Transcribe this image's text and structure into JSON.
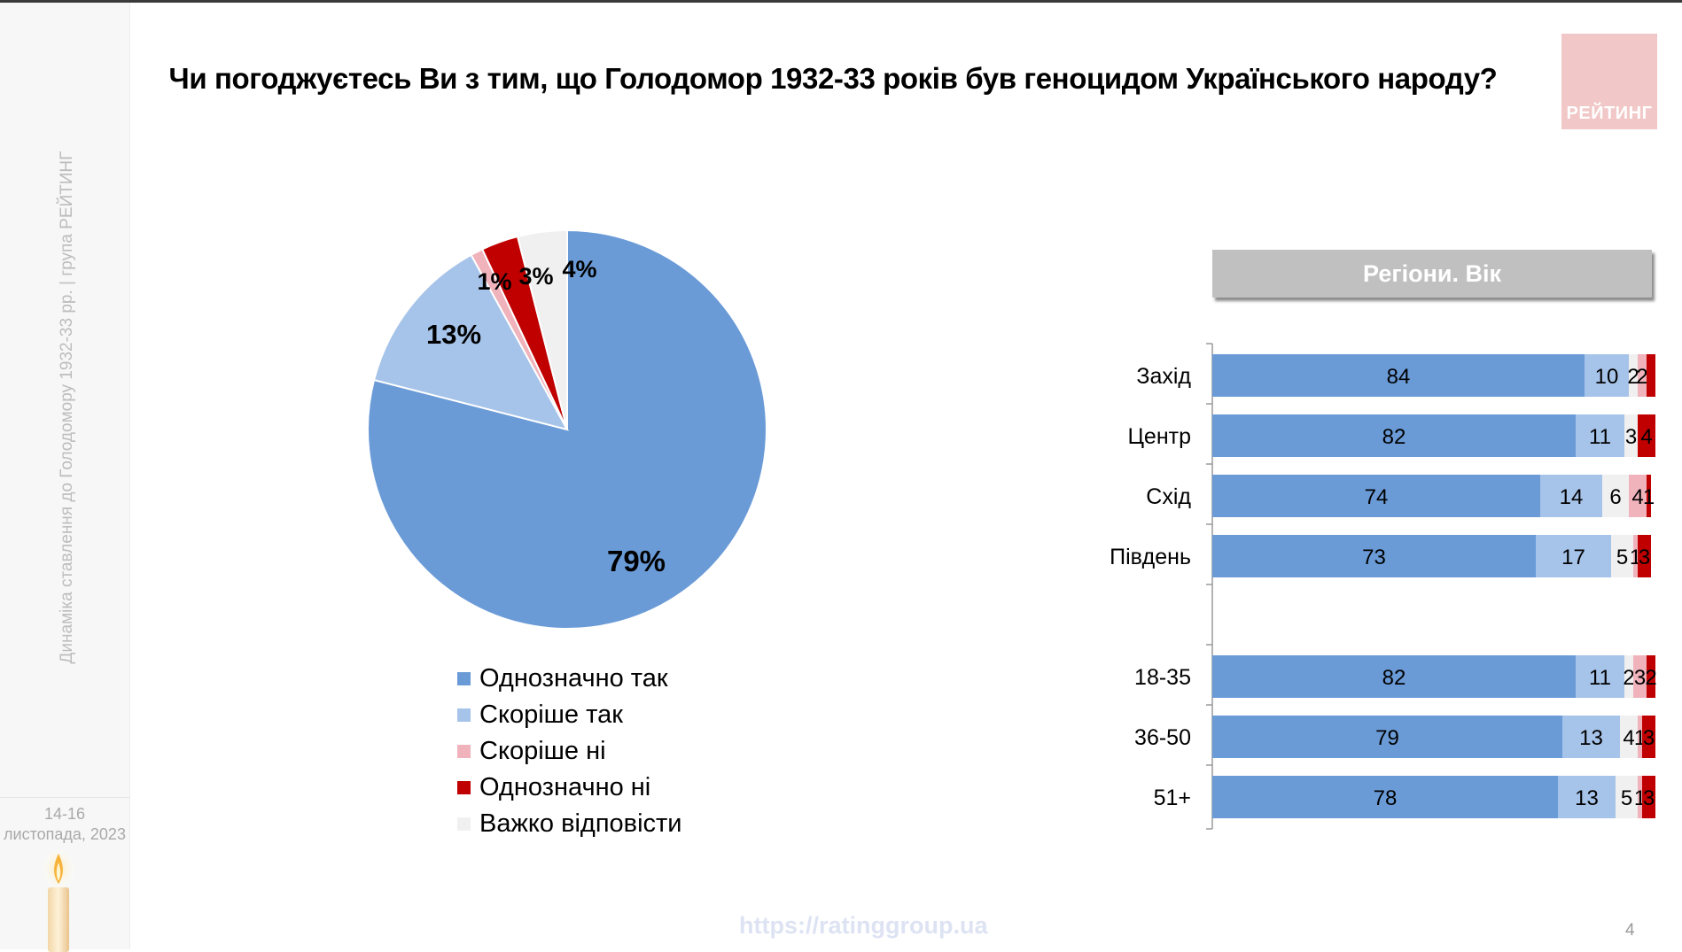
{
  "page": {
    "title": "Чи погоджуєтесь Ви з тим, що Голодомор 1932-33 років був геноцидом Українського народу?",
    "sidebar_text": "Динаміка ставлення до Голодомору 1932-33 рр. | група РЕЙТИНГ",
    "date_line1": "14-16",
    "date_line2": "листопада, 2023",
    "logo_text": "РЕЙТИНГ",
    "url": "https://ratinggroup.ua",
    "page_number": "4",
    "panel_title": "Регіони. Вік"
  },
  "colors": {
    "series": [
      "#6a9bd7",
      "#a6c3e9",
      "#f0b3bc",
      "#c00000",
      "#f0f0f0"
    ]
  },
  "chart_data": [
    {
      "type": "pie",
      "title": "Чи погоджуєтесь Ви з тим, що Голодомор 1932-33 років був геноцидом Українського народу?",
      "categories": [
        "Однозначно так",
        "Скоріше так",
        "Скоріше ні",
        "Однозначно ні",
        "Важко відповісти"
      ],
      "values": [
        79,
        13,
        1,
        3,
        4
      ],
      "labels": [
        "79%",
        "13%",
        "1%",
        "3%",
        "4%"
      ],
      "legend": "bottom"
    },
    {
      "type": "bar",
      "orientation": "horizontal",
      "stacked": true,
      "title": "Регіони. Вік",
      "categories": [
        "Захід",
        "Центр",
        "Схід",
        "Південь",
        "18-35",
        "36-50",
        "51+"
      ],
      "series": [
        {
          "name": "Однозначно так",
          "values": [
            84,
            82,
            74,
            73,
            82,
            79,
            78
          ]
        },
        {
          "name": "Скоріше так",
          "values": [
            10,
            11,
            14,
            17,
            11,
            13,
            13
          ]
        },
        {
          "name": "Важко відповісти",
          "values": [
            2,
            3,
            6,
            5,
            2,
            4,
            5
          ]
        },
        {
          "name": "Скоріше ні",
          "values": [
            2,
            0,
            4,
            1,
            3,
            1,
            1
          ]
        },
        {
          "name": "Однозначно ні",
          "values": [
            2,
            4,
            1,
            3,
            2,
            3,
            3
          ]
        }
      ],
      "segment_labels": [
        [
          "84",
          "10",
          "2",
          "2",
          ""
        ],
        [
          "82",
          "11",
          "3",
          "",
          "4"
        ],
        [
          "74",
          "14",
          "6",
          "4",
          "1"
        ],
        [
          "73",
          "17",
          "5",
          "1",
          "3"
        ],
        [
          "82",
          "11",
          "2",
          "3",
          "2"
        ],
        [
          "79",
          "13",
          "4",
          "1",
          "3"
        ],
        [
          "78",
          "13",
          "5",
          "1",
          "3"
        ]
      ]
    }
  ]
}
